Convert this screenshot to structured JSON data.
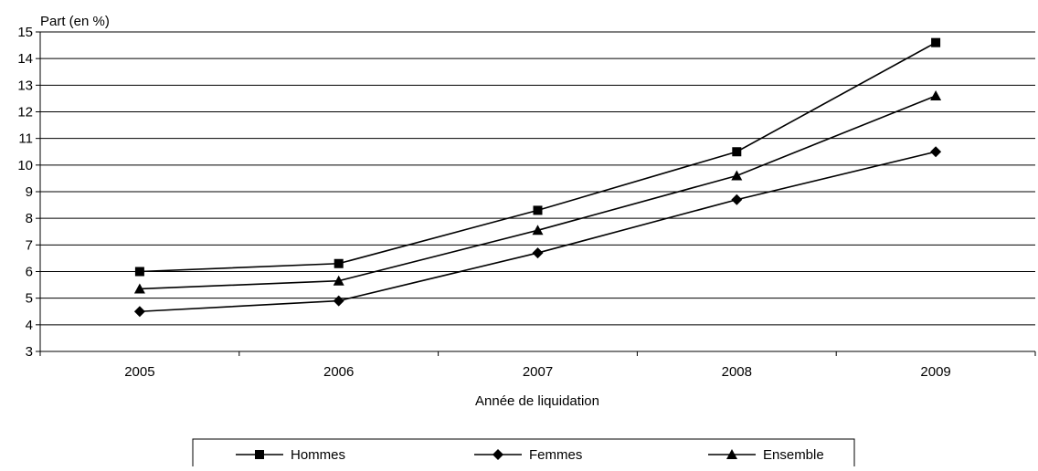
{
  "chart_data": {
    "type": "line",
    "title": "",
    "ylabel": "Part (en %)",
    "xlabel": "Année de liquidation",
    "categories": [
      "2005",
      "2006",
      "2007",
      "2008",
      "2009"
    ],
    "ylim": [
      3,
      15
    ],
    "yticks": [
      3,
      4,
      5,
      6,
      7,
      8,
      9,
      10,
      11,
      12,
      13,
      14,
      15
    ],
    "grid": "horizontal",
    "legend_placement": "bottom",
    "series": [
      {
        "name": "Hommes",
        "marker": "square",
        "color": "#000000",
        "values": [
          6.0,
          6.3,
          8.3,
          10.5,
          14.6
        ]
      },
      {
        "name": "Femmes",
        "marker": "diamond",
        "color": "#000000",
        "values": [
          4.5,
          4.9,
          6.7,
          8.7,
          10.5
        ]
      },
      {
        "name": "Ensemble",
        "marker": "triangle",
        "color": "#000000",
        "values": [
          5.35,
          5.65,
          7.55,
          9.6,
          12.6
        ]
      }
    ]
  }
}
